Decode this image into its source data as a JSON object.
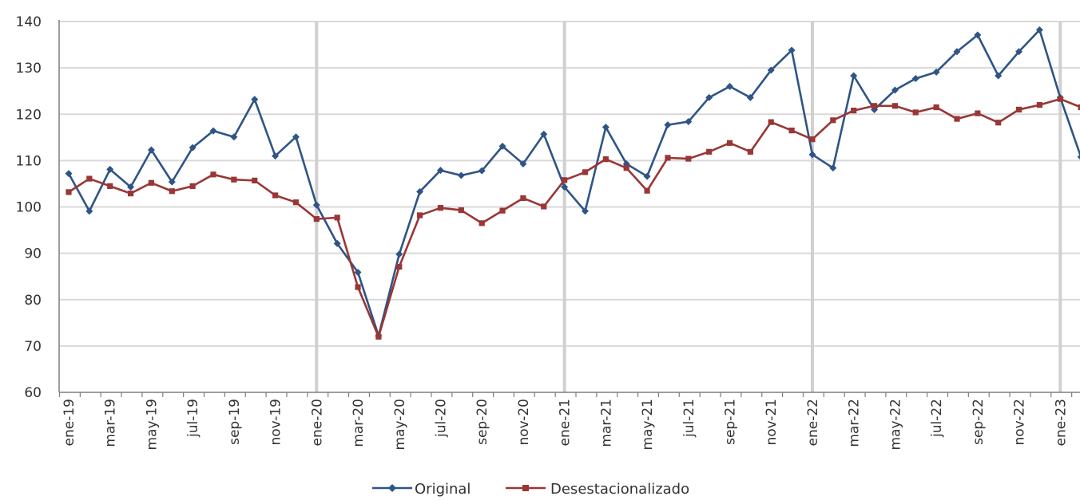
{
  "chart_data": {
    "type": "line",
    "title": "",
    "xlabel": "",
    "ylabel": "",
    "ylim": [
      60,
      140
    ],
    "yticks": [
      60,
      70,
      80,
      90,
      100,
      110,
      120,
      130,
      140
    ],
    "grid": true,
    "legend_position": "bottom",
    "x": [
      "ene-19",
      "feb-19",
      "mar-19",
      "abr-19",
      "may-19",
      "jun-19",
      "jul-19",
      "ago-19",
      "sep-19",
      "oct-19",
      "nov-19",
      "dic-19",
      "ene-20",
      "feb-20",
      "mar-20",
      "abr-20",
      "may-20",
      "jun-20",
      "jul-20",
      "ago-20",
      "sep-20",
      "oct-20",
      "nov-20",
      "dic-20",
      "ene-21",
      "feb-21",
      "mar-21",
      "abr-21",
      "may-21",
      "jun-21",
      "jul-21",
      "ago-21",
      "sep-21",
      "oct-21",
      "nov-21",
      "dic-21",
      "ene-22",
      "feb-22",
      "mar-22",
      "abr-22",
      "may-22",
      "jun-22",
      "jul-22",
      "ago-22",
      "sep-22",
      "oct-22",
      "nov-22",
      "dic-22",
      "ene-23",
      "feb-23"
    ],
    "xtick_labels": [
      "ene-19",
      "mar-19",
      "may-19",
      "jul-19",
      "sep-19",
      "nov-19",
      "ene-20",
      "mar-20",
      "may-20",
      "jul-20",
      "sep-20",
      "nov-20",
      "ene-21",
      "mar-21",
      "may-21",
      "jul-21",
      "sep-21",
      "nov-21",
      "ene-22",
      "mar-22",
      "may-22",
      "jul-22",
      "sep-22",
      "nov-22",
      "ene-23"
    ],
    "year_separators": [
      "ene-20",
      "ene-21",
      "ene-22",
      "ene-23"
    ],
    "series": [
      {
        "name": "Original",
        "color": "#2f5486",
        "marker": "diamond",
        "values": [
          107.2,
          99.1,
          108.1,
          104.3,
          112.3,
          105.4,
          112.8,
          116.4,
          115.1,
          123.2,
          111.0,
          115.1,
          100.4,
          92.1,
          85.9,
          72.2,
          89.8,
          103.3,
          107.9,
          106.8,
          107.8,
          113.1,
          109.3,
          115.7,
          104.3,
          99.1,
          117.2,
          109.3,
          106.6,
          117.7,
          118.4,
          123.6,
          126.0,
          123.6,
          129.5,
          133.8,
          111.3,
          108.4,
          128.3,
          121.0,
          125.2,
          127.7,
          129.1,
          133.5,
          137.1,
          128.3,
          133.5,
          138.2,
          123.6,
          110.8
        ]
      },
      {
        "name": "Desestacionalizado",
        "color": "#993636",
        "marker": "square",
        "values": [
          103.2,
          106.1,
          104.5,
          102.9,
          105.2,
          103.4,
          104.5,
          107.0,
          105.9,
          105.7,
          102.5,
          101.0,
          97.4,
          97.7,
          82.7,
          72.0,
          87.1,
          98.2,
          99.8,
          99.3,
          96.5,
          99.2,
          101.9,
          100.1,
          105.8,
          107.5,
          110.3,
          108.4,
          103.5,
          110.6,
          110.4,
          111.9,
          113.8,
          111.9,
          118.3,
          116.5,
          114.6,
          118.7,
          120.8,
          121.8,
          121.8,
          120.4,
          121.5,
          119.0,
          120.2,
          118.2,
          121.0,
          122.0,
          123.3,
          121.5
        ]
      }
    ]
  }
}
